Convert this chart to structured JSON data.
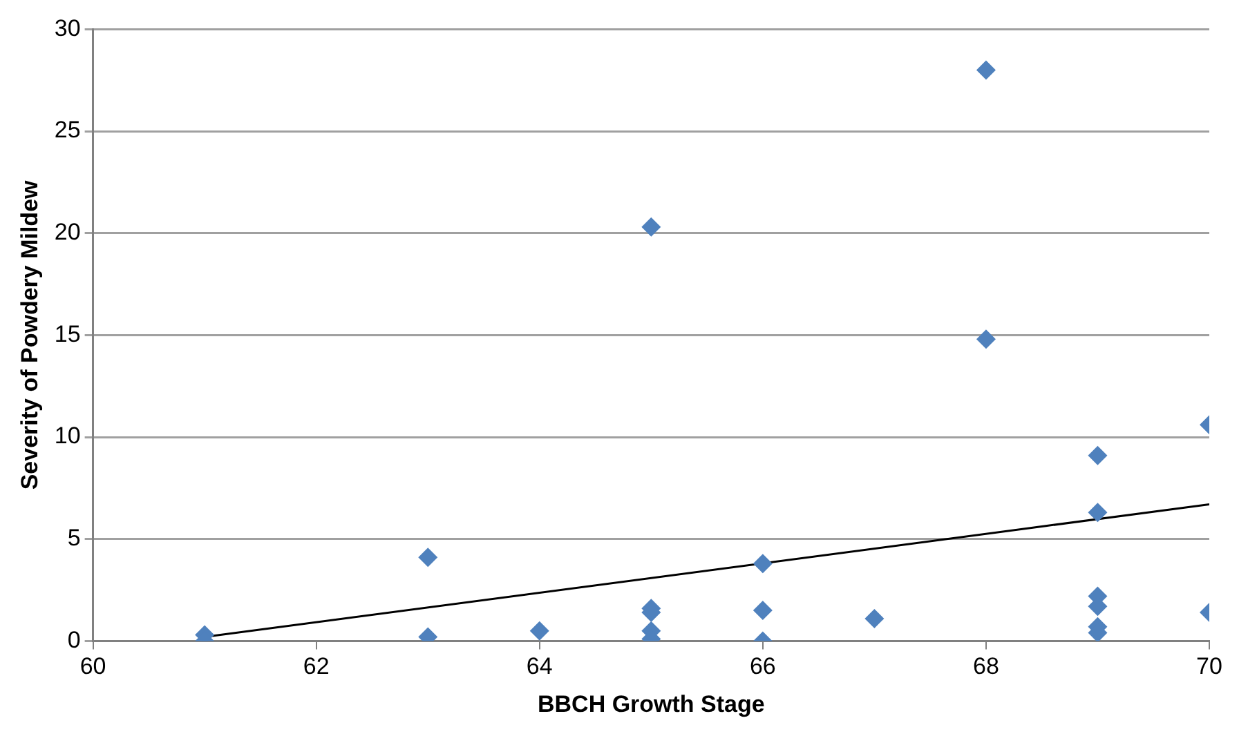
{
  "chart_data": {
    "type": "scatter",
    "xlabel": "BBCH Growth Stage",
    "ylabel": "Severity of Powdery Mildew",
    "marker": "diamond",
    "grid": "y",
    "xlim": [
      60,
      70
    ],
    "xticks": [
      60,
      62,
      64,
      66,
      68,
      70
    ],
    "ylim": [
      0,
      30
    ],
    "yticks": [
      0,
      5,
      10,
      15,
      20,
      25,
      30
    ],
    "series": [
      {
        "color": "#4f81bd",
        "x": [
          61,
          61,
          63,
          63,
          64,
          65,
          65,
          65,
          65,
          65,
          66,
          66,
          66,
          67,
          68,
          68,
          69,
          69,
          69,
          69,
          69,
          69,
          70,
          70
        ],
        "values": [
          0.3,
          0,
          4.1,
          0.2,
          0.5,
          20.3,
          1.6,
          1.4,
          0.5,
          0.1,
          3.8,
          1.5,
          0,
          1.1,
          28,
          14.8,
          9.1,
          6.3,
          2.2,
          1.7,
          0.7,
          0.4,
          10.6,
          1.4
        ]
      },
      {
        "type": "line",
        "color": "#000000",
        "marker": "none",
        "x": [
          61,
          70
        ],
        "values": [
          0.2,
          6.7
        ]
      }
    ]
  }
}
